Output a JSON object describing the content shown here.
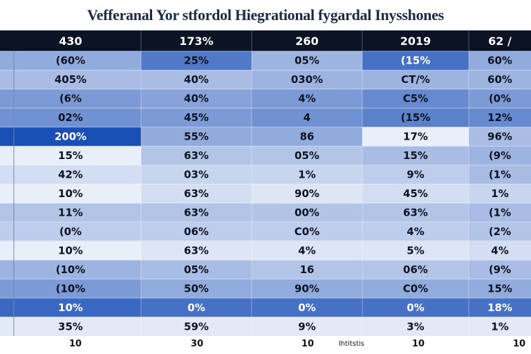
{
  "title": "Vefferanal Yor stfordol Hiegrational fygardal Inysshones",
  "chart_data": {
    "type": "heatmap",
    "title": "Vefferanal Yor stfordol Hiegrational fygardal Inysshones",
    "columns": [
      "430",
      "173%",
      "260",
      "2019",
      "62 /"
    ],
    "rows": [
      [
        "(60%",
        "25%",
        "05%",
        "(15%",
        "60%"
      ],
      [
        "405%",
        "40%",
        "030%",
        "CT/%",
        "60%"
      ],
      [
        "(6%",
        "40%",
        "4%",
        "C5%",
        "(0%"
      ],
      [
        "02%",
        "45%",
        "4",
        "(15%",
        "12%"
      ],
      [
        "200%",
        "55%",
        "86",
        "17%",
        "96%"
      ],
      [
        "15%",
        "63%",
        "05%",
        "15%",
        "(9%"
      ],
      [
        "42%",
        "03%",
        "1%",
        "9%",
        "(1%"
      ],
      [
        "10%",
        "63%",
        "90%",
        "45%",
        "1%"
      ],
      [
        "11%",
        "63%",
        "00%",
        "63%",
        "(1%"
      ],
      [
        "(0%",
        "06%",
        "C0%",
        "4%",
        "(2%"
      ],
      [
        "10%",
        "63%",
        "4%",
        "5%",
        "4%"
      ],
      [
        "(10%",
        "05%",
        "16",
        "06%",
        "(9%"
      ],
      [
        "(10%",
        "50%",
        "90%",
        "C0%",
        "15%"
      ],
      [
        "10%",
        "0%",
        "0%",
        "0%",
        "18%"
      ],
      [
        "35%",
        "59%",
        "9%",
        "3%",
        "1%"
      ]
    ],
    "intensity": [
      [
        0.45,
        0.75,
        0.4,
        0.8,
        0.45
      ],
      [
        0.35,
        0.35,
        0.4,
        0.4,
        0.4
      ],
      [
        0.55,
        0.5,
        0.55,
        0.65,
        0.55
      ],
      [
        0.6,
        0.55,
        0.6,
        0.7,
        0.65
      ],
      [
        1.0,
        0.45,
        0.45,
        0.05,
        0.35
      ],
      [
        0.05,
        0.3,
        0.3,
        0.35,
        0.4
      ],
      [
        0.15,
        0.2,
        0.2,
        0.25,
        0.35
      ],
      [
        0.05,
        0.15,
        0.1,
        0.15,
        0.2
      ],
      [
        0.3,
        0.3,
        0.3,
        0.3,
        0.35
      ],
      [
        0.25,
        0.25,
        0.25,
        0.25,
        0.3
      ],
      [
        0.05,
        0.1,
        0.1,
        0.1,
        0.15
      ],
      [
        0.4,
        0.35,
        0.3,
        0.3,
        0.35
      ],
      [
        0.55,
        0.45,
        0.45,
        0.45,
        0.45
      ],
      [
        0.85,
        0.8,
        0.8,
        0.8,
        0.8
      ],
      [
        0.08,
        0.08,
        0.08,
        0.08,
        0.08
      ]
    ],
    "footer_labels": [
      "10",
      "30",
      "10",
      "10",
      "10"
    ],
    "footer_note": "lhtitstis",
    "colors": {
      "header_bg": "#0b1324",
      "low": "#f4f7fc",
      "high": "#1a4fb6"
    }
  }
}
